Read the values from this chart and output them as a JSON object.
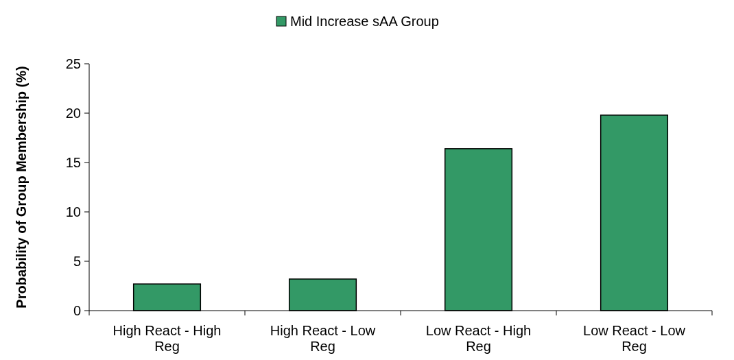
{
  "chart_data": {
    "type": "bar",
    "ylabel": "Probability of Group Membership (%)",
    "categories": [
      "High React - High Reg",
      "High React - Low Reg",
      "Low React - High Reg",
      "Low React - Low Reg"
    ],
    "series": [
      {
        "name": "Mid Increase sAA Group",
        "color": "#339966",
        "values": [
          2.7,
          3.2,
          16.4,
          19.8
        ]
      }
    ],
    "ylim": [
      0,
      25
    ],
    "yticks": [
      0,
      5,
      10,
      15,
      20,
      25
    ],
    "grid": false,
    "legend": "top"
  }
}
